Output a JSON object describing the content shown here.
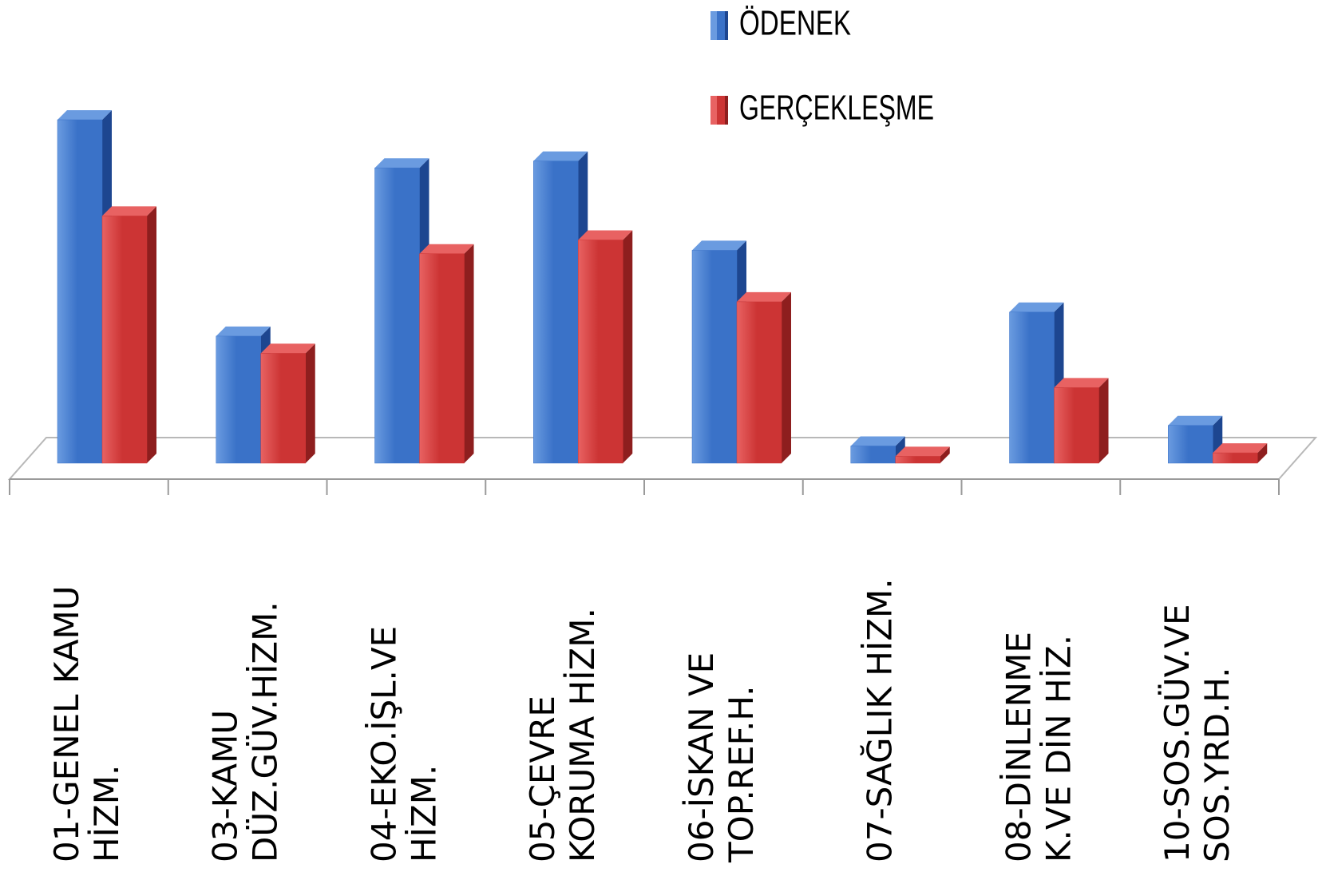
{
  "chart_data": {
    "type": "bar",
    "style": "3d-clustered-column",
    "categories": [
      [
        "01-GENEL KAMU",
        "HİZM."
      ],
      [
        "03-KAMU",
        "DÜZ.GÜV.HİZM."
      ],
      [
        "04-EKO.İŞL.VE",
        "HİZM."
      ],
      [
        "05-ÇEVRE",
        "KORUMA HİZM."
      ],
      [
        "06-İSKAN VE",
        "TOP.REF.H."
      ],
      [
        "07-SAĞLIK HİZM."
      ],
      [
        "08-DİNLENME",
        "K.VE DİN HİZ."
      ],
      [
        "10-SOS.GÜV.VE",
        "SOS.YRD.H."
      ]
    ],
    "series": [
      {
        "name": "ÖDENEK",
        "values": [
          100,
          37,
          86,
          88,
          62,
          5,
          44,
          11
        ]
      },
      {
        "name": "GERÇEKLEŞME",
        "values": [
          72,
          32,
          61,
          65,
          47,
          2,
          22,
          3
        ]
      }
    ],
    "colors": {
      "odenek_front": "#3a72c8",
      "odenek_light": "#6a9be0",
      "odenek_dark": "#1d4690",
      "gerceklesme_front": "#cc3434",
      "gerceklesme_light": "#e86262",
      "gerceklesme_dark": "#8e1e1e"
    },
    "grid": false,
    "legend_position": "top-right",
    "axis_labels_rotation": "vertical"
  }
}
